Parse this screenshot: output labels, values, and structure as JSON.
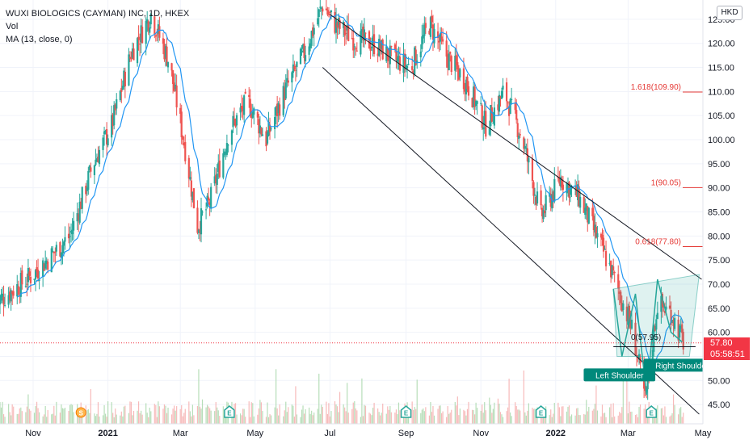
{
  "legend": {
    "title": "WUXI BIOLOGICS (CAYMAN) INC, 1D, HKEX",
    "vol": "Vol",
    "ma": "MA (13, close, 0)"
  },
  "currency": "HKD",
  "last_price": "57.80",
  "countdown": "05:58:51",
  "colors": {
    "up": "#26a69a",
    "down": "#ef5350",
    "ma": "#2196f3",
    "fib": "#e53935",
    "channel": "#131722",
    "pattern": "#26a69a"
  },
  "chart_data": {
    "type": "candlestick",
    "y_axis": {
      "min": 41,
      "max": 129,
      "ticks": [
        "45.00",
        "50.00",
        "55.00",
        "60.00",
        "65.00",
        "70.00",
        "75.00",
        "80.00",
        "85.00",
        "90.00",
        "95.00",
        "100.00",
        "105.00",
        "110.00",
        "115.00",
        "120.00",
        "125.00"
      ]
    },
    "x_axis": {
      "ticks": [
        "Nov",
        "2021",
        "Mar",
        "May",
        "Jul",
        "Sep",
        "Nov",
        "2022",
        "Mar",
        "May"
      ]
    },
    "price_path": [
      [
        "2020-10-01",
        66
      ],
      [
        "2020-11-01",
        72
      ],
      [
        "2020-12-01",
        80
      ],
      [
        "2020-12-20",
        95
      ],
      [
        "2021-01-04",
        103
      ],
      [
        "2021-01-20",
        118
      ],
      [
        "2021-02-05",
        126
      ],
      [
        "2021-02-20",
        116
      ],
      [
        "2021-03-05",
        98
      ],
      [
        "2021-03-15",
        82
      ],
      [
        "2021-03-25",
        87
      ],
      [
        "2021-04-10",
        102
      ],
      [
        "2021-04-25",
        108
      ],
      [
        "2021-05-10",
        100
      ],
      [
        "2021-05-25",
        110
      ],
      [
        "2021-06-10",
        118
      ],
      [
        "2021-06-25",
        128
      ],
      [
        "2021-07-05",
        124
      ],
      [
        "2021-07-20",
        121
      ],
      [
        "2021-08-05",
        120
      ],
      [
        "2021-08-20",
        117
      ],
      [
        "2021-09-05",
        115
      ],
      [
        "2021-09-20",
        124
      ],
      [
        "2021-10-05",
        117
      ],
      [
        "2021-10-20",
        112
      ],
      [
        "2021-11-05",
        103
      ],
      [
        "2021-11-20",
        110
      ],
      [
        "2021-12-05",
        100
      ],
      [
        "2021-12-20",
        84
      ],
      [
        "2022-01-05",
        92
      ],
      [
        "2022-01-20",
        88
      ],
      [
        "2022-02-05",
        79
      ],
      [
        "2022-02-15",
        73
      ],
      [
        "2022-02-25",
        66
      ],
      [
        "2022-03-05",
        60
      ],
      [
        "2022-03-15",
        46
      ],
      [
        "2022-03-25",
        66
      ],
      [
        "2022-04-05",
        64
      ],
      [
        "2022-04-15",
        58
      ]
    ],
    "fib_levels": [
      {
        "label": "1.618(109.90)",
        "value": 109.9
      },
      {
        "label": "1(90.05)",
        "value": 90.05
      },
      {
        "label": "0.618(77.80)",
        "value": 77.8
      },
      {
        "label": "0(57.95)",
        "value": 57.95
      }
    ],
    "annotations": [
      {
        "label": "Left Shoulder",
        "x": "2022-02-22",
        "y": 51
      },
      {
        "label": "Right Shoulder",
        "x": "2022-04-14",
        "y": 53
      }
    ],
    "markers": [
      "S",
      "E",
      "E",
      "E",
      "E"
    ]
  }
}
